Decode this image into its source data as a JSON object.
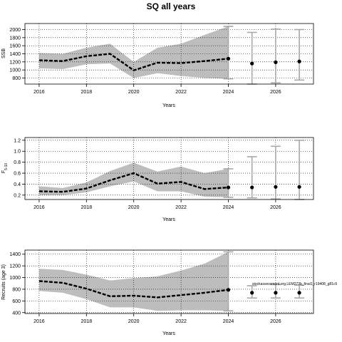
{
  "title": "SQ all years",
  "chart_data": [
    {
      "type": "line",
      "ylabel": "SSB",
      "xlabel": "Years",
      "xlim": [
        2015.4,
        2027.6
      ],
      "ylim": [
        650,
        2150
      ],
      "xticks": [
        2016,
        2018,
        2020,
        2022,
        2024,
        2026
      ],
      "yticks": [
        800,
        1000,
        1200,
        1400,
        1600,
        1800,
        2000
      ],
      "grid": true,
      "series": [
        {
          "role": "estimate",
          "x": [
            2016,
            2017,
            2018,
            2019,
            2020,
            2021,
            2022,
            2023,
            2024
          ],
          "values": [
            1240,
            1220,
            1340,
            1400,
            990,
            1180,
            1170,
            1220,
            1280
          ]
        },
        {
          "role": "upper",
          "x": [
            2016,
            2017,
            2018,
            2019,
            2020,
            2021,
            2022,
            2023,
            2024
          ],
          "values": [
            1420,
            1400,
            1550,
            1650,
            1200,
            1550,
            1650,
            1870,
            2080
          ]
        },
        {
          "role": "lower",
          "x": [
            2016,
            2017,
            2018,
            2019,
            2020,
            2021,
            2022,
            2023,
            2024
          ],
          "values": [
            1040,
            1020,
            1140,
            1160,
            800,
            920,
            850,
            800,
            780
          ]
        }
      ],
      "projections": [
        {
          "x": 2024,
          "value": 1280,
          "low": 780,
          "high": 2080
        },
        {
          "x": 2025,
          "value": 1160,
          "low": 650,
          "high": 1930
        },
        {
          "x": 2026,
          "value": 1190,
          "low": 680,
          "high": 2010
        },
        {
          "x": 2027,
          "value": 1210,
          "low": 750,
          "high": 2000
        }
      ]
    },
    {
      "type": "line",
      "ylabel": "F",
      "ylabel_sub": "5-10",
      "xlabel": "Years",
      "xlim": [
        2015.4,
        2027.6
      ],
      "ylim": [
        0.12,
        1.25
      ],
      "xticks": [
        2016,
        2018,
        2020,
        2022,
        2024,
        2026
      ],
      "yticks": [
        0.2,
        0.4,
        0.6,
        0.8,
        1.0,
        1.2
      ],
      "ytick_labels": [
        "0.2",
        "0.4",
        "0.6",
        "0.8",
        "1.0",
        "1.2"
      ],
      "grid": true,
      "series": [
        {
          "role": "estimate",
          "x": [
            2016,
            2017,
            2018,
            2019,
            2020,
            2021,
            2022,
            2023,
            2024
          ],
          "values": [
            0.27,
            0.26,
            0.32,
            0.47,
            0.6,
            0.41,
            0.44,
            0.31,
            0.34
          ]
        },
        {
          "role": "upper",
          "x": [
            2016,
            2017,
            2018,
            2019,
            2020,
            2021,
            2022,
            2023,
            2024
          ],
          "values": [
            0.36,
            0.33,
            0.43,
            0.64,
            0.79,
            0.63,
            0.72,
            0.6,
            0.68
          ]
        },
        {
          "role": "lower",
          "x": [
            2016,
            2017,
            2018,
            2019,
            2020,
            2021,
            2022,
            2023,
            2024
          ],
          "values": [
            0.2,
            0.2,
            0.25,
            0.36,
            0.45,
            0.27,
            0.27,
            0.17,
            0.16
          ]
        }
      ],
      "projections": [
        {
          "x": 2024,
          "value": 0.34,
          "low": 0.16,
          "high": 0.68
        },
        {
          "x": 2025,
          "value": 0.34,
          "low": 0.15,
          "high": 0.9
        },
        {
          "x": 2026,
          "value": 0.35,
          "low": 0.13,
          "high": 1.09
        },
        {
          "x": 2027,
          "value": 0.35,
          "low": 0.12,
          "high": 1.2
        }
      ]
    },
    {
      "type": "line",
      "ylabel": "Recruits (age 3)",
      "xlabel": "Years",
      "xlim": [
        2015.4,
        2027.6
      ],
      "ylim": [
        385,
        1470
      ],
      "xticks": [
        2016,
        2018,
        2020,
        2022,
        2024,
        2026
      ],
      "yticks": [
        400,
        600,
        800,
        1000,
        1200,
        1400
      ],
      "grid": true,
      "annotation": "stockassessment.org,LEM273b_final1_r19408_g81c5",
      "series": [
        {
          "role": "estimate",
          "x": [
            2016,
            2017,
            2018,
            2019,
            2020,
            2021,
            2022,
            2023,
            2024
          ],
          "values": [
            940,
            910,
            810,
            680,
            690,
            660,
            700,
            740,
            790
          ]
        },
        {
          "role": "upper",
          "x": [
            2016,
            2017,
            2018,
            2019,
            2020,
            2021,
            2022,
            2023,
            2024
          ],
          "values": [
            1150,
            1130,
            1050,
            950,
            990,
            1020,
            1120,
            1240,
            1440
          ]
        },
        {
          "role": "lower",
          "x": [
            2016,
            2017,
            2018,
            2019,
            2020,
            2021,
            2022,
            2023,
            2024
          ],
          "values": [
            770,
            740,
            630,
            490,
            490,
            430,
            440,
            440,
            430
          ]
        }
      ],
      "projections": [
        {
          "x": 2024,
          "value": 790,
          "low": 430,
          "high": 1440
        },
        {
          "x": 2025,
          "value": 740,
          "low": 650,
          "high": 860
        },
        {
          "x": 2026,
          "value": 740,
          "low": 650,
          "high": 880
        },
        {
          "x": 2027,
          "value": 740,
          "low": 650,
          "high": 870
        }
      ]
    }
  ]
}
